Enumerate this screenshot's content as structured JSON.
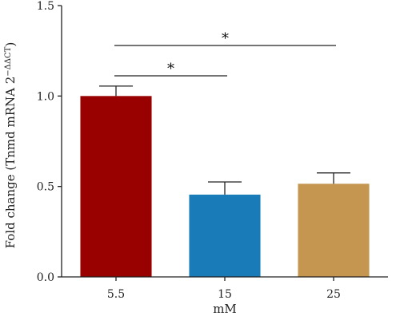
{
  "chart_data": {
    "type": "bar",
    "categories": [
      "5.5",
      "15",
      "25"
    ],
    "values": [
      1.0,
      0.455,
      0.515
    ],
    "errors": [
      0.055,
      0.07,
      0.06
    ],
    "colors": [
      "#990000",
      "#1a7bb9",
      "#c4964f"
    ],
    "xlabel": "mM",
    "ylabel": "Fold change (Tnmd mRNA 2",
    "ylabel_superscript": "−ΔΔCT",
    "ylabel_suffix": ")",
    "ylim": [
      0,
      1.5
    ],
    "yticks": [
      "0.0",
      "0.5",
      "1.0",
      "1.5"
    ],
    "significance": [
      {
        "from": "5.5",
        "to": "15",
        "label": "*"
      },
      {
        "from": "5.5",
        "to": "25",
        "label": "*"
      }
    ],
    "grid": false
  }
}
